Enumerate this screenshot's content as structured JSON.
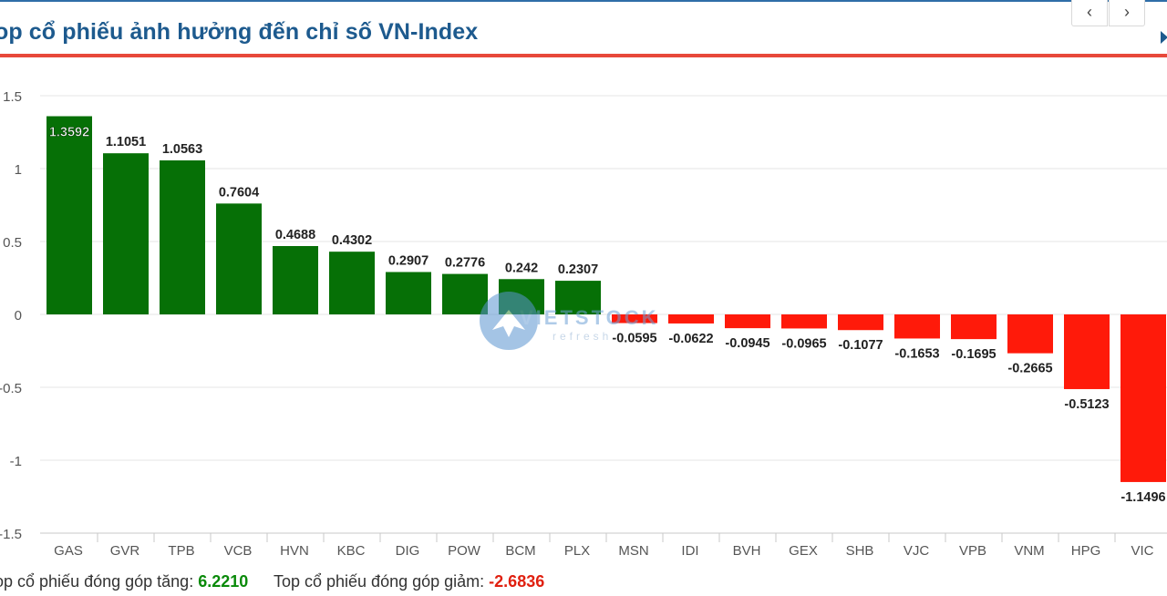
{
  "header": {
    "title": "op cổ phiếu ảnh hưởng đến chỉ số VN-Index",
    "nav_prev_icon": "chevron-left-icon",
    "nav_next_icon": "chevron-right-icon",
    "nav_prev_glyph": "‹",
    "nav_next_glyph": "›"
  },
  "watermark": {
    "text": "VIETSTOCK",
    "sub": "refresh"
  },
  "footer": {
    "up_label": "op cổ phiếu đóng góp tăng:",
    "up_value": "6.2210",
    "down_label": "Top cổ phiếu đóng góp giảm:",
    "down_value": "-2.6836"
  },
  "colors": {
    "positive": "#067006",
    "negative": "#ff1a0a",
    "title": "#1d5a8e",
    "accent_rule": "#e8483a"
  },
  "chart_data": {
    "type": "bar",
    "title": "",
    "xlabel": "",
    "ylabel": "",
    "ylim": [
      -1.5,
      1.5
    ],
    "yticks": [
      "1.5",
      "1",
      "0.5",
      "0",
      "-0.5",
      "-1",
      "-1.5"
    ],
    "ytick_values": [
      1.5,
      1,
      0.5,
      0,
      -0.5,
      -1,
      -1.5
    ],
    "grid": true,
    "categories": [
      "GAS",
      "GVR",
      "TPB",
      "VCB",
      "HVN",
      "KBC",
      "DIG",
      "POW",
      "BCM",
      "PLX",
      "MSN",
      "IDI",
      "BVH",
      "GEX",
      "SHB",
      "VJC",
      "VPB",
      "VNM",
      "HPG",
      "VIC"
    ],
    "values": [
      1.3592,
      1.1051,
      1.0563,
      0.7604,
      0.4688,
      0.4302,
      0.2907,
      0.2776,
      0.242,
      0.2307,
      -0.0595,
      -0.0622,
      -0.0945,
      -0.0965,
      -0.1077,
      -0.1653,
      -0.1695,
      -0.2665,
      -0.5123,
      -1.1496
    ],
    "labels": [
      "1.3592",
      "1.1051",
      "1.0563",
      "0.7604",
      "0.4688",
      "0.4302",
      "0.2907",
      "0.2776",
      "0.242",
      "0.2307",
      "-0.0595",
      "-0.0622",
      "-0.0945",
      "-0.0965",
      "-0.1077",
      "-0.1653",
      "-0.1695",
      "-0.2665",
      "-0.5123",
      "-1.1496"
    ]
  }
}
